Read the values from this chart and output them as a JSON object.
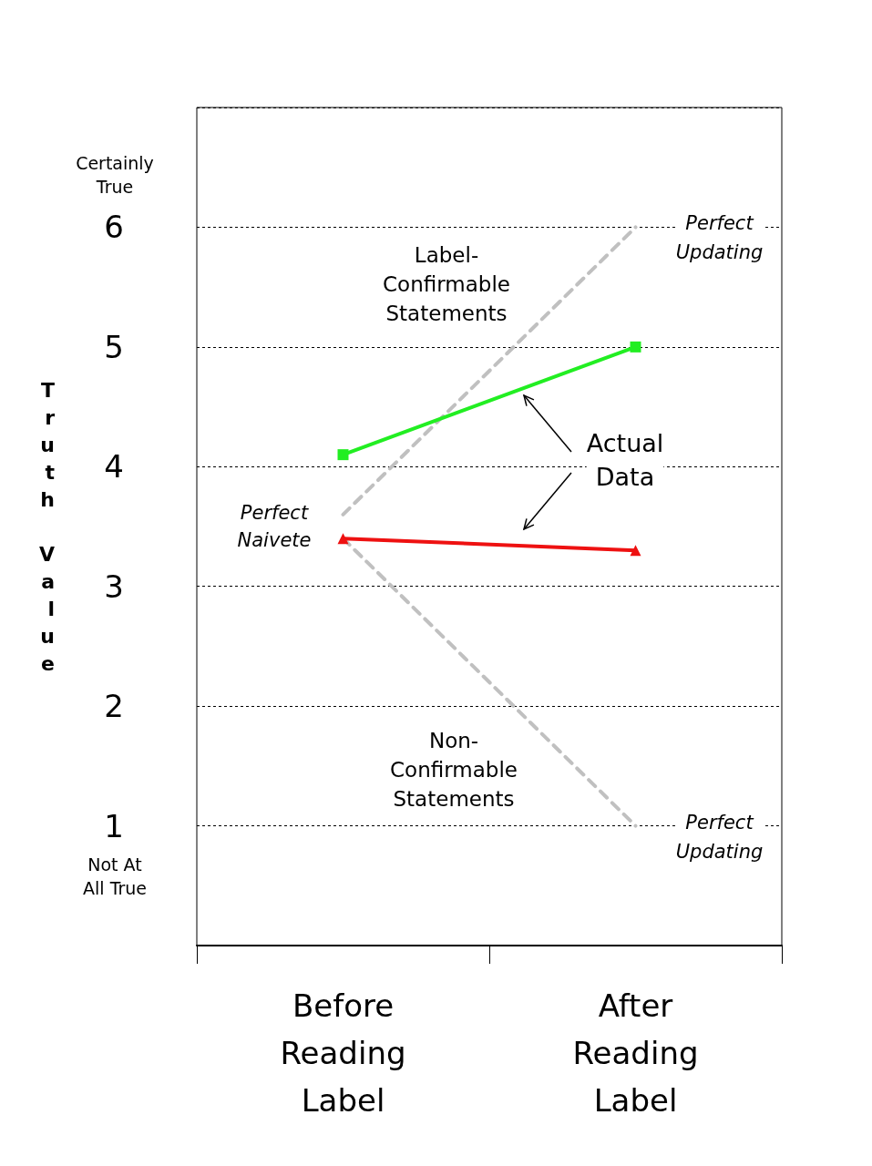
{
  "chart_data": {
    "type": "line",
    "ylabel": "Truth Value",
    "categories": [
      "Before Reading Label",
      "After Reading Label"
    ],
    "series": [
      {
        "color": "#c0c0c0",
        "values": [
          3.6,
          6
        ],
        "line_style": "dashed",
        "marker": "none"
      },
      {
        "color": "#c0c0c0",
        "values": [
          3.4,
          1
        ],
        "line_style": "dashed",
        "marker": "none"
      },
      {
        "color": "#22ee22",
        "values": [
          4.1,
          5.0
        ],
        "line_style": "solid",
        "marker": "square"
      },
      {
        "color": "#ee1111",
        "values": [
          3.4,
          3.3
        ],
        "line_style": "solid",
        "marker": "triangle"
      }
    ],
    "ylim": [
      0,
      7
    ],
    "yticks": [
      {
        "value": 0,
        "label": null
      },
      1,
      2,
      3,
      4,
      5,
      6,
      {
        "value": 7,
        "label": null
      }
    ],
    "grid": "y",
    "annotations": [
      "Certainly True",
      "Not At All True",
      {
        "text": "Perfect Updating",
        "x": "After Reading Label",
        "y": 6
      },
      {
        "text": "Perfect Updating",
        "x": "After Reading Label",
        "y": 1
      },
      "Perfect Naivete",
      "Label-Confirmable Statements",
      "Non-Confirmable Statements",
      "Actual Data"
    ]
  }
}
